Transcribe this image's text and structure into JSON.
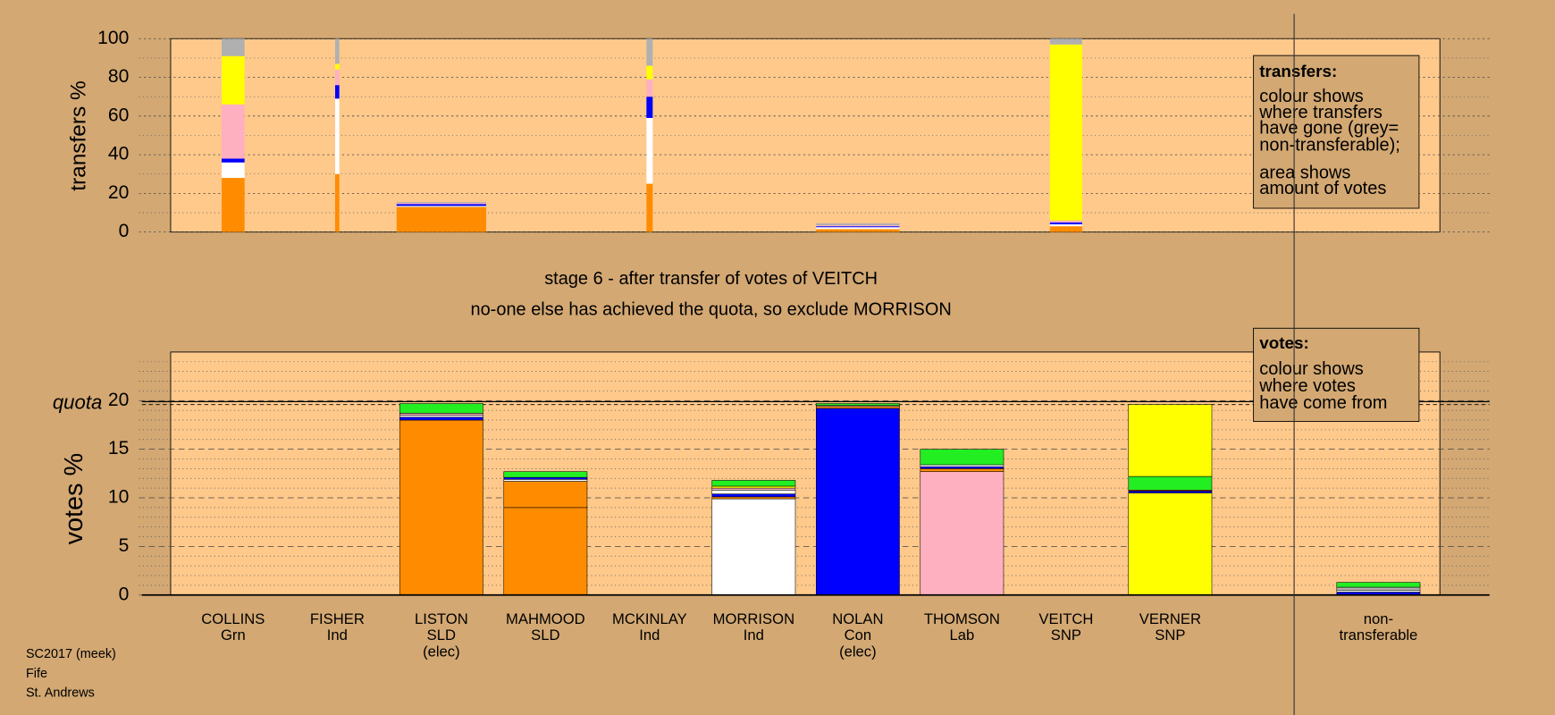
{
  "chart_data": [
    {
      "type": "stacked-bar",
      "ylabel": "transfers %",
      "ylim": [
        0,
        100
      ],
      "yticks": [
        0,
        20,
        40,
        60,
        80,
        100
      ],
      "minor_yticks": [
        10,
        30,
        50,
        70,
        90
      ],
      "widths": [
        22,
        4,
        86,
        0,
        6,
        0,
        80,
        0,
        31,
        0,
        0
      ],
      "stacks": [
        [
          {
            "color": "#ff8c00",
            "value": 28
          },
          {
            "color": "#ffffff",
            "value": 8
          },
          {
            "color": "#0000ff",
            "value": 2
          },
          {
            "color": "#ffb0c0",
            "value": 28
          },
          {
            "color": "#ffff00",
            "value": 25
          },
          {
            "color": "#b0b0b0",
            "value": 9
          }
        ],
        [
          {
            "color": "#ff8c00",
            "value": 30
          },
          {
            "color": "#ffffff",
            "value": 39
          },
          {
            "color": "#0000ff",
            "value": 7
          },
          {
            "color": "#ffb0c0",
            "value": 8
          },
          {
            "color": "#ffff00",
            "value": 3
          },
          {
            "color": "#b0b0b0",
            "value": 13
          }
        ],
        [
          {
            "color": "#ff8c00",
            "value": 13
          },
          {
            "color": "#ffffff",
            "value": 0.5
          },
          {
            "color": "#0000ff",
            "value": 1
          },
          {
            "color": "#ffb0c0",
            "value": 0.5
          },
          {
            "color": "#b0b0b0",
            "value": 0.5
          }
        ],
        [],
        [
          {
            "color": "#ff8c00",
            "value": 25
          },
          {
            "color": "#ffffff",
            "value": 34
          },
          {
            "color": "#0000ff",
            "value": 11
          },
          {
            "color": "#ffb0c0",
            "value": 9
          },
          {
            "color": "#ffff00",
            "value": 7
          },
          {
            "color": "#b0b0b0",
            "value": 14
          }
        ],
        [],
        [
          {
            "color": "#ff8c00",
            "value": 1.5
          },
          {
            "color": "#ffffff",
            "value": 1
          },
          {
            "color": "#0000ff",
            "value": 0.5
          },
          {
            "color": "#ffb0c0",
            "value": 0.5
          },
          {
            "color": "#b0b0b0",
            "value": 1
          }
        ],
        [],
        [
          {
            "color": "#ff8c00",
            "value": 3
          },
          {
            "color": "#ffffff",
            "value": 1
          },
          {
            "color": "#0000ff",
            "value": 1
          },
          {
            "color": "#ffb0c0",
            "value": 1
          },
          {
            "color": "#ffff00",
            "value": 91
          },
          {
            "color": "#b0b0b0",
            "value": 3
          }
        ],
        [],
        []
      ],
      "note": [
        "transfers:",
        "colour shows",
        "where transfers",
        "have gone (grey=",
        "non-transferable);",
        "area shows",
        "amount of votes"
      ]
    },
    {
      "type": "stacked-bar",
      "title": "stage 6 - after transfer of votes of VEITCH",
      "subtitle": "no-one else has achieved the quota, so exclude MORRISON",
      "ylabel": "votes %",
      "ylim": [
        0,
        25
      ],
      "yticks": [
        0,
        5,
        10,
        15,
        20
      ],
      "minor_yticks": [
        1,
        2,
        3,
        4,
        6,
        7,
        8,
        9,
        11,
        12,
        13,
        14,
        16,
        17,
        18,
        19,
        21,
        22,
        23,
        24
      ],
      "quota": 19.9,
      "quota_label": "quota",
      "categories": [
        [
          "COLLINS",
          "Grn"
        ],
        [
          "FISHER",
          "Ind"
        ],
        [
          "LISTON",
          "SLD",
          "(elec)"
        ],
        [
          "MAHMOOD",
          "SLD"
        ],
        [
          "MCKINLAY",
          "Ind"
        ],
        [
          "MORRISON",
          "Ind"
        ],
        [
          "NOLAN",
          "Con",
          "(elec)"
        ],
        [
          "THOMSON",
          "Lab"
        ],
        [
          "VEITCH",
          "SNP"
        ],
        [
          "VERNER",
          "SNP"
        ],
        [
          "non-",
          "transferable"
        ]
      ],
      "stacks": [
        [],
        [],
        [
          {
            "color": "#ff8c00",
            "value": 18.0
          },
          {
            "color": "#0000ff",
            "value": 0.3
          },
          {
            "color": "#ffffff",
            "value": 0.2
          },
          {
            "color": "#ffb0c0",
            "value": 0.2
          },
          {
            "color": "#22ee22",
            "value": 1.0
          }
        ],
        [
          {
            "color": "#ff8c00",
            "value": 9.0
          },
          {
            "color": "#ff8c00",
            "value": 2.7
          },
          {
            "color": "#ffffff",
            "value": 0.2
          },
          {
            "color": "#0000ff",
            "value": 0.2
          },
          {
            "color": "#22ee22",
            "value": 0.6
          }
        ],
        [],
        [
          {
            "color": "#ffffff",
            "value": 9.9
          },
          {
            "color": "#ff8c00",
            "value": 0.2
          },
          {
            "color": "#0000ff",
            "value": 0.3
          },
          {
            "color": "#ffffff",
            "value": 0.4
          },
          {
            "color": "#ffb0c0",
            "value": 0.2
          },
          {
            "color": "#ffff00",
            "value": 0.2
          },
          {
            "color": "#22ee22",
            "value": 0.6
          }
        ],
        [
          {
            "color": "#0000ff",
            "value": 19.2
          },
          {
            "color": "#ff8c00",
            "value": 0.2
          },
          {
            "color": "#ffb0c0",
            "value": 0.1
          },
          {
            "color": "#22ee22",
            "value": 0.2
          }
        ],
        [
          {
            "color": "#ffb0c0",
            "value": 12.7
          },
          {
            "color": "#ff8c00",
            "value": 0.3
          },
          {
            "color": "#0000ff",
            "value": 0.2
          },
          {
            "color": "#ffffff",
            "value": 0.2
          },
          {
            "color": "#22ee22",
            "value": 1.6
          }
        ],
        [],
        [
          {
            "color": "#ffff00",
            "value": 10.5
          },
          {
            "color": "#0000ff",
            "value": 0.2
          },
          {
            "color": "#ff8c00",
            "value": 0.1
          },
          {
            "color": "#22ee22",
            "value": 1.4
          },
          {
            "color": "#ffff00",
            "value": 7.4
          }
        ],
        [
          {
            "color": "#0000ff",
            "value": 0.3
          },
          {
            "color": "#ffffff",
            "value": 0.2
          },
          {
            "color": "#b0b0b0",
            "value": 0.3
          },
          {
            "color": "#22ee22",
            "value": 0.5
          }
        ]
      ],
      "note": [
        "votes:",
        "colour shows",
        "where votes",
        "have come from"
      ],
      "footnote": [
        "SC2017 (meek)",
        "Fife",
        "St. Andrews"
      ]
    }
  ]
}
